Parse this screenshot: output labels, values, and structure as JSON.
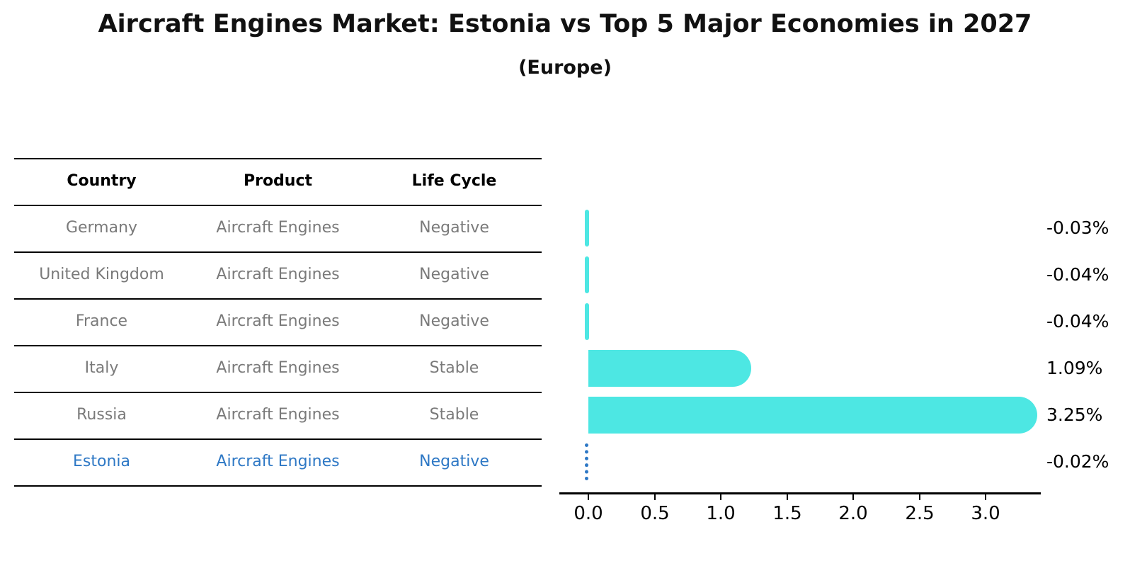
{
  "title": "Aircraft Engines Market: Estonia vs Top 5 Major Economies in 2027",
  "subtitle": "(Europe)",
  "table": {
    "headers": {
      "country": "Country",
      "product": "Product",
      "life_cycle": "Life Cycle"
    },
    "rows": [
      {
        "country": "Germany",
        "product": "Aircraft Engines",
        "life_cycle": "Negative",
        "highlighted": false
      },
      {
        "country": "United Kingdom",
        "product": "Aircraft Engines",
        "life_cycle": "Negative",
        "highlighted": false
      },
      {
        "country": "France",
        "product": "Aircraft Engines",
        "life_cycle": "Negative",
        "highlighted": false
      },
      {
        "country": "Italy",
        "product": "Aircraft Engines",
        "life_cycle": "Stable",
        "highlighted": false
      },
      {
        "country": "Russia",
        "product": "Aircraft Engines",
        "life_cycle": "Stable",
        "highlighted": false
      },
      {
        "country": "Estonia",
        "product": "Aircraft Engines",
        "life_cycle": "Negative",
        "highlighted": true
      }
    ]
  },
  "chart_data": {
    "type": "bar",
    "orientation": "horizontal",
    "title": "Aircraft Engines Market: Estonia vs Top 5 Major Economies in 2027 (Europe)",
    "categories": [
      "Germany",
      "United Kingdom",
      "France",
      "Italy",
      "Russia",
      "Estonia"
    ],
    "values": [
      -0.03,
      -0.04,
      -0.04,
      1.09,
      3.25,
      -0.02
    ],
    "value_labels": [
      "-0.03%",
      "-0.04%",
      "-0.04%",
      "1.09%",
      "3.25%",
      "-0.02%"
    ],
    "unit": "%",
    "x_ticks": [
      "0.0",
      "0.5",
      "1.0",
      "1.5",
      "2.0",
      "2.5",
      "3.0"
    ],
    "xlim": [
      -0.2,
      3.42
    ],
    "grid": false,
    "legend": "none",
    "bar_color": "#4de7e3",
    "highlight_color": "#2e78c5",
    "highlight_category": "Estonia",
    "highlight_marker": "blue-dotted-line"
  }
}
